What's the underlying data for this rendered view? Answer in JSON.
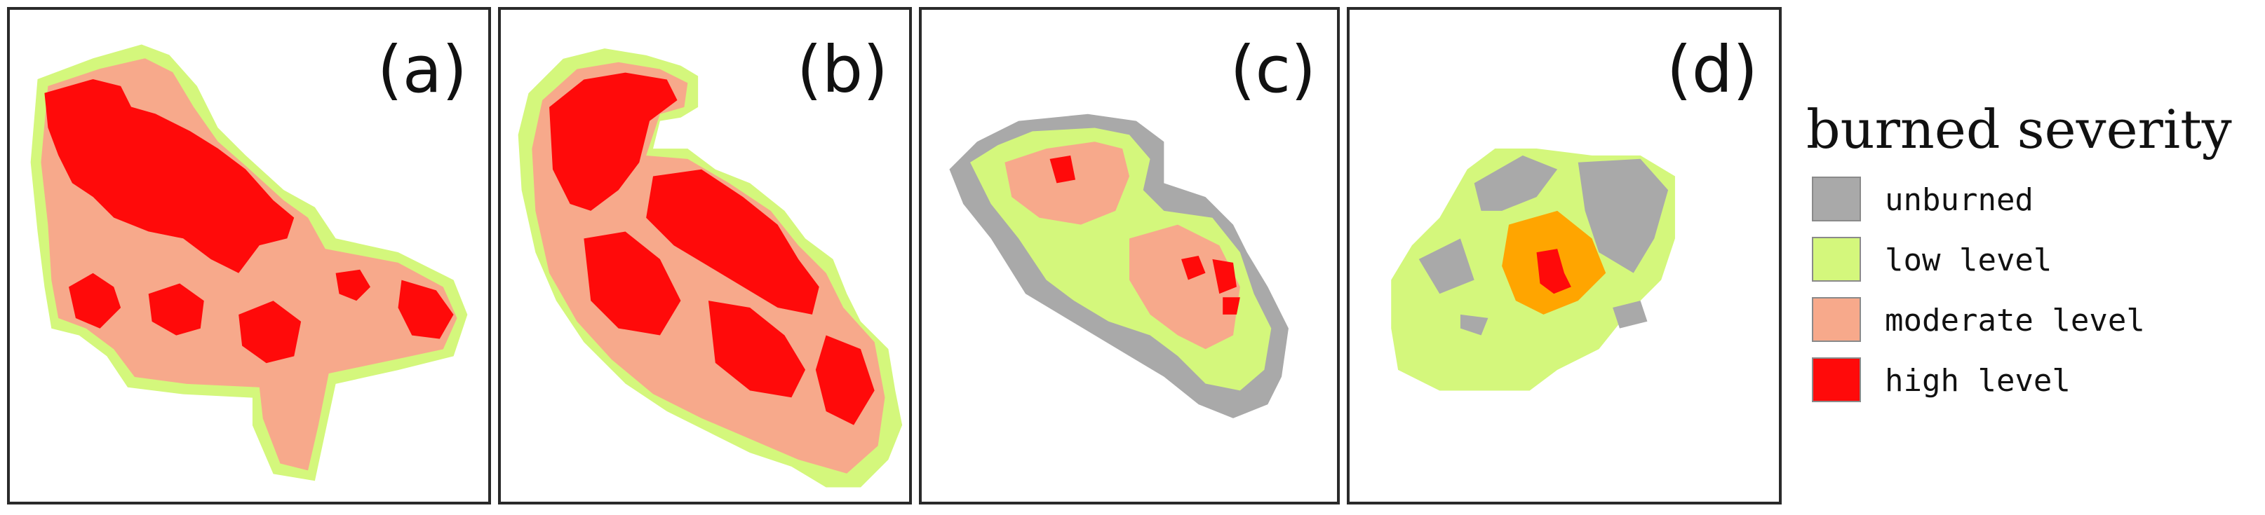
{
  "panels": [
    {
      "label": "(a)"
    },
    {
      "label": "(b)"
    },
    {
      "label": "(c)"
    },
    {
      "label": "(d)"
    }
  ],
  "legend": {
    "title": "burned severity",
    "items": [
      {
        "label": "unburned",
        "color": "#a9a9a9"
      },
      {
        "label": "low level",
        "color": "#d4f77c"
      },
      {
        "label": "moderate level",
        "color": "#f7a98b"
      },
      {
        "label": "high level",
        "color": "#ff0a0a"
      }
    ],
    "extra_color_panel_d": "#ffa500"
  }
}
